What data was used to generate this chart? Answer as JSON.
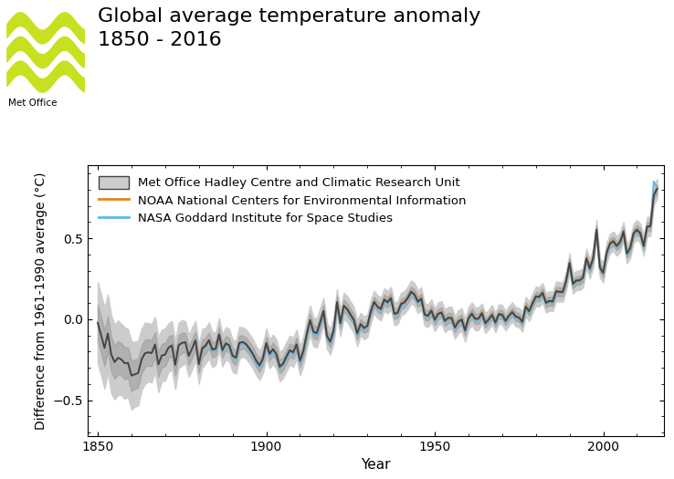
{
  "title_line1": "Global average temperature anomaly",
  "title_line2": "1850 - 2016",
  "xlabel": "Year",
  "ylabel": "Difference from 1961-1990 average (°C)",
  "xlim": [
    1847,
    2018
  ],
  "ylim": [
    -0.72,
    0.95
  ],
  "yticks": [
    -0.5,
    0.0,
    0.5
  ],
  "xticks": [
    1850,
    1900,
    1950,
    2000
  ],
  "hadcrut_color": "#444444",
  "noaa_color": "#E8821A",
  "nasa_color": "#5BB8E8",
  "shade_light_color": "#CCCCCC",
  "shade_dark_color": "#999999",
  "legend_labels": [
    "Met Office Hadley Centre and Climatic Research Unit",
    "NOAA National Centers for Environmental Information",
    "NASA Goddard Institute for Space Studies"
  ],
  "metoffice_logo_color": "#C8E020",
  "background_color": "#FFFFFF",
  "title_fontsize": 16,
  "axis_fontsize": 11,
  "legend_fontsize": 9.5
}
